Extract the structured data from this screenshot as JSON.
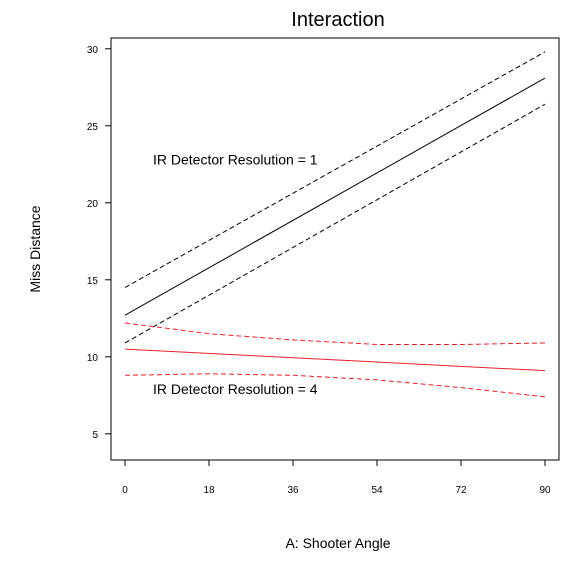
{
  "chart_data": {
    "type": "line",
    "title": "Interaction",
    "xlabel": "A: Shooter Angle",
    "ylabel": "Miss Distance",
    "x_ticks": [
      0,
      18,
      36,
      54,
      72,
      90
    ],
    "y_ticks": [
      5,
      10,
      15,
      20,
      25,
      30
    ],
    "xlim": [
      -3,
      93
    ],
    "ylim": [
      3.3,
      30.7
    ],
    "grid": false,
    "series": [
      {
        "group": "res1",
        "style": "solid",
        "color": "#000000",
        "x": [
          0,
          90
        ],
        "y": [
          12.7,
          28.1
        ]
      },
      {
        "group": "res1",
        "style": "dashed",
        "color": "#000000",
        "x": [
          0,
          90
        ],
        "y": [
          14.5,
          29.8
        ]
      },
      {
        "group": "res1",
        "style": "dashed",
        "color": "#000000",
        "x": [
          0,
          90
        ],
        "y": [
          10.9,
          26.4
        ]
      },
      {
        "group": "res4",
        "style": "solid",
        "color": "#e8202a",
        "x": [
          0,
          90
        ],
        "y": [
          10.5,
          9.1
        ]
      },
      {
        "group": "res4",
        "style": "dashed",
        "color": "#e8202a",
        "x": [
          0,
          18,
          36,
          54,
          72,
          90
        ],
        "y": [
          12.2,
          11.5,
          11.1,
          10.8,
          10.8,
          10.9
        ]
      },
      {
        "group": "res4",
        "style": "dashed",
        "color": "#e8202a",
        "x": [
          0,
          18,
          36,
          54,
          72,
          90
        ],
        "y": [
          8.8,
          8.9,
          8.8,
          8.5,
          8.0,
          7.4
        ]
      }
    ],
    "annotations": [
      {
        "text": "IR Detector Resolution = 1",
        "x": 6,
        "y": 22.5
      },
      {
        "text": "IR Detector Resolution = 4",
        "x": 6,
        "y": 7.6
      }
    ]
  }
}
